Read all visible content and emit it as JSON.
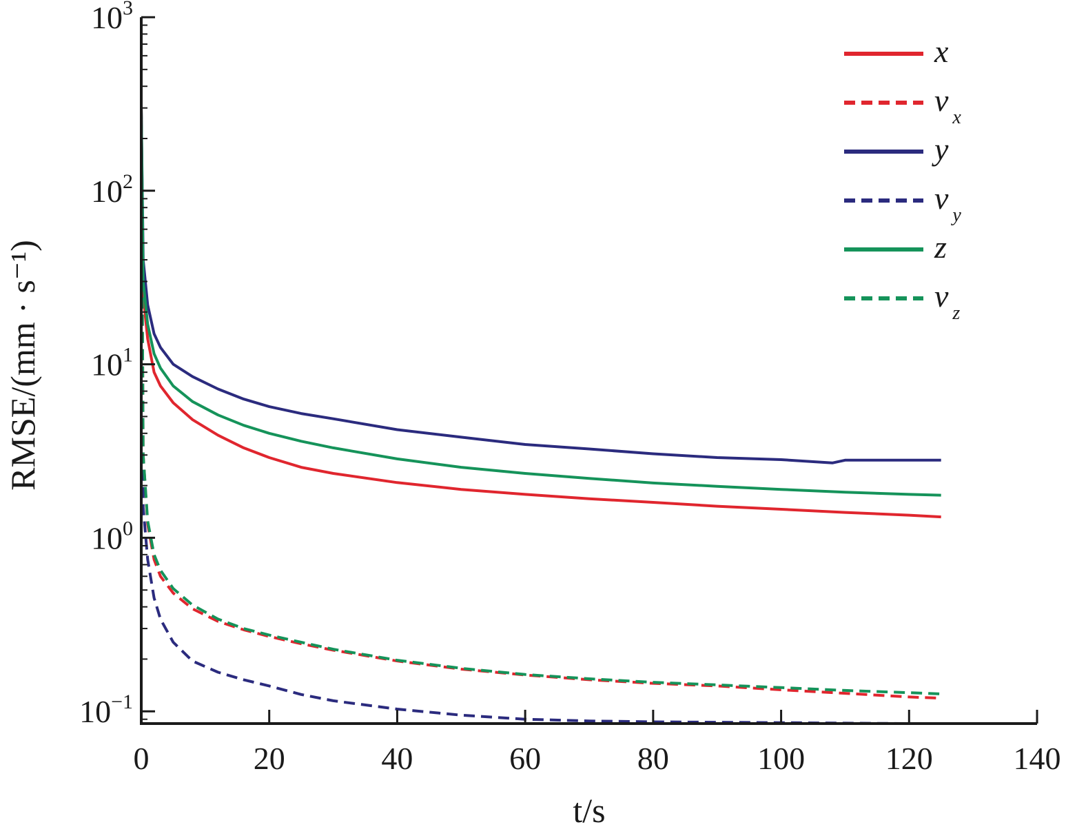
{
  "chart_data": {
    "type": "line",
    "xlabel": "t/s",
    "ylabel": "RMSE/(mm · s⁻¹)",
    "xlim": [
      0,
      140
    ],
    "ylim": [
      0.085,
      1000
    ],
    "yscale": "log",
    "grid": false,
    "legend_position": "top-right",
    "x_ticks": [
      {
        "value": 0,
        "label": "0"
      },
      {
        "value": 20,
        "label": "20"
      },
      {
        "value": 40,
        "label": "40"
      },
      {
        "value": 60,
        "label": "60"
      },
      {
        "value": 80,
        "label": "80"
      },
      {
        "value": 100,
        "label": "100"
      },
      {
        "value": 120,
        "label": "120"
      },
      {
        "value": 140,
        "label": "140"
      }
    ],
    "y_ticks": [
      {
        "value": 0.1,
        "base": "10",
        "exp": "−1"
      },
      {
        "value": 1,
        "base": "10",
        "exp": "0"
      },
      {
        "value": 10,
        "base": "10",
        "exp": "1"
      },
      {
        "value": 100,
        "base": "10",
        "exp": "2"
      },
      {
        "value": 1000,
        "base": "10",
        "exp": "3"
      }
    ],
    "series": [
      {
        "name": "x",
        "sub": "",
        "color": "#e0262e",
        "dash": "solid",
        "x": [
          0,
          0.3,
          1,
          2,
          3,
          5,
          8,
          12,
          16,
          20,
          25,
          30,
          40,
          50,
          60,
          70,
          80,
          90,
          100,
          110,
          120,
          125
        ],
        "y": [
          300,
          25,
          14,
          9,
          7.5,
          6,
          4.8,
          3.9,
          3.3,
          2.9,
          2.55,
          2.35,
          2.08,
          1.9,
          1.78,
          1.68,
          1.6,
          1.52,
          1.46,
          1.4,
          1.35,
          1.32
        ]
      },
      {
        "name": "v",
        "sub": "x",
        "color": "#e0262e",
        "dash": "dashed",
        "x": [
          0,
          0.3,
          1,
          2,
          3,
          5,
          8,
          12,
          16,
          20,
          25,
          30,
          40,
          50,
          60,
          70,
          80,
          90,
          100,
          110,
          120,
          125
        ],
        "y": [
          300,
          3,
          1.2,
          0.75,
          0.6,
          0.48,
          0.39,
          0.33,
          0.295,
          0.27,
          0.245,
          0.225,
          0.195,
          0.175,
          0.162,
          0.152,
          0.145,
          0.14,
          0.133,
          0.127,
          0.121,
          0.119
        ]
      },
      {
        "name": "y",
        "sub": "",
        "color": "#2b2b7e",
        "dash": "solid",
        "x": [
          0,
          0.3,
          1,
          2,
          3,
          5,
          8,
          12,
          16,
          20,
          25,
          30,
          40,
          50,
          60,
          70,
          80,
          90,
          100,
          108,
          110,
          120,
          125
        ],
        "y": [
          300,
          40,
          22,
          15,
          12.5,
          10,
          8.5,
          7.2,
          6.3,
          5.7,
          5.2,
          4.85,
          4.2,
          3.8,
          3.45,
          3.25,
          3.05,
          2.9,
          2.82,
          2.7,
          2.8,
          2.8,
          2.8
        ]
      },
      {
        "name": "v",
        "sub": "y",
        "color": "#2b2b7e",
        "dash": "dashed",
        "x": [
          0,
          0.3,
          1,
          2,
          3,
          5,
          8,
          12,
          16,
          20,
          25,
          30,
          40,
          50,
          60,
          70,
          80,
          90,
          100,
          110,
          120,
          125
        ],
        "y": [
          300,
          1.5,
          0.75,
          0.45,
          0.34,
          0.25,
          0.195,
          0.168,
          0.152,
          0.14,
          0.125,
          0.115,
          0.103,
          0.095,
          0.09,
          0.088,
          0.087,
          0.0865,
          0.086,
          0.0855,
          0.085,
          0.085
        ]
      },
      {
        "name": "z",
        "sub": "",
        "color": "#15935a",
        "dash": "solid",
        "x": [
          0,
          0.3,
          1,
          2,
          3,
          5,
          8,
          12,
          16,
          20,
          25,
          30,
          40,
          50,
          60,
          70,
          80,
          90,
          100,
          110,
          120,
          125
        ],
        "y": [
          300,
          30,
          17,
          11.5,
          9.5,
          7.5,
          6.1,
          5.1,
          4.45,
          4.0,
          3.6,
          3.3,
          2.85,
          2.55,
          2.35,
          2.2,
          2.07,
          1.98,
          1.9,
          1.83,
          1.78,
          1.76
        ]
      },
      {
        "name": "v",
        "sub": "z",
        "color": "#15935a",
        "dash": "dashed",
        "x": [
          0,
          0.3,
          1,
          2,
          3,
          5,
          8,
          12,
          16,
          20,
          25,
          30,
          40,
          50,
          60,
          70,
          80,
          90,
          100,
          110,
          120,
          125
        ],
        "y": [
          300,
          3,
          1.25,
          0.8,
          0.65,
          0.51,
          0.41,
          0.34,
          0.3,
          0.275,
          0.25,
          0.228,
          0.197,
          0.177,
          0.163,
          0.154,
          0.147,
          0.142,
          0.137,
          0.132,
          0.128,
          0.126
        ]
      }
    ]
  }
}
